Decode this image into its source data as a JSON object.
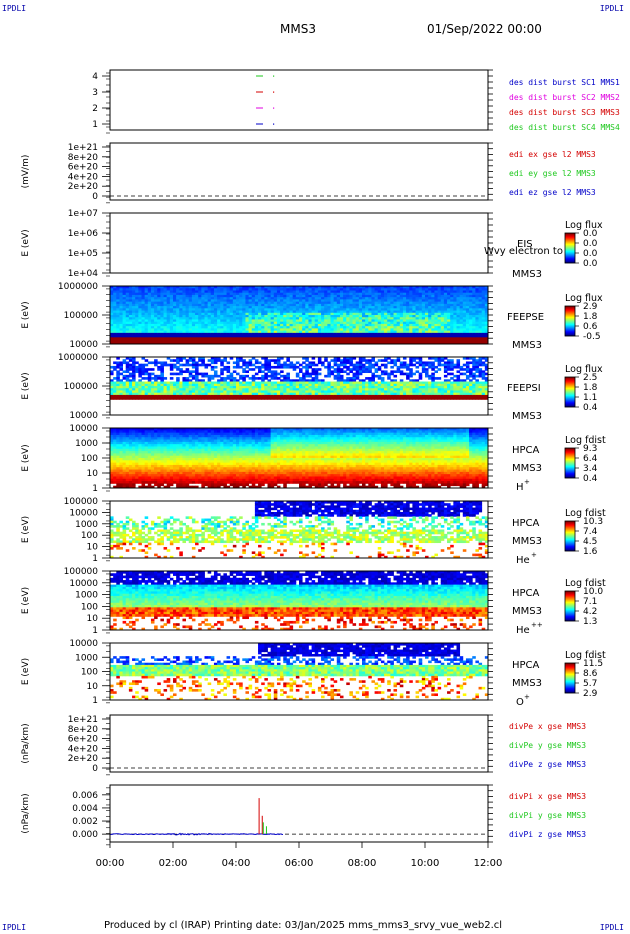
{
  "corners": {
    "tl": "IPDLI",
    "tr": "IPDLI",
    "bl": "IPDLI",
    "br": "IPDLI"
  },
  "header": {
    "spacecraft": "MMS3",
    "date": "01/Sep/2022 00:00"
  },
  "footer": {
    "text": "Produced by cl (IRAP)   Printing date: 03/Jan/2025   mms_mms3_srvy_vue_web2.cl"
  },
  "colors": {
    "red": "#d40000",
    "green": "#1ec81e",
    "magenta": "#e000e0",
    "blue": "#0000c8"
  },
  "chart_data": [
    {
      "id": "burst",
      "type": "scatter",
      "yticks": [
        "1",
        "2",
        "3",
        "4"
      ],
      "legend": [
        {
          "text": "des dist burst SC1 MMS1",
          "color": "#0000c8"
        },
        {
          "text": "des dist burst SC2 MMS2",
          "color": "#e000e0"
        },
        {
          "text": "des dist burst SC3 MMS3",
          "color": "#d40000"
        },
        {
          "text": "des dist burst SC4 MMS4",
          "color": "#1ec81e"
        }
      ]
    },
    {
      "id": "edi",
      "type": "line",
      "ylabel": "(mV/m)",
      "yticks": [
        "0",
        "2e+20",
        "4e+20",
        "6e+20",
        "8e+20",
        "1e+21"
      ],
      "legend": [
        {
          "text": "edi ex gse l2 MMS3",
          "color": "#d40000"
        },
        {
          "text": "edi ey gse l2 MMS3",
          "color": "#1ec81e"
        },
        {
          "text": "edi ez gse l2 MMS3",
          "color": "#0000c8"
        }
      ]
    },
    {
      "id": "eis",
      "type": "heatmap",
      "ylabel": "E (eV)",
      "yticks": [
        "1e+04",
        "1e+05",
        "1e+06",
        "1e+07"
      ],
      "labels": [
        "EIS",
        "MMS3"
      ],
      "overlay": "Wvy electron to",
      "colorbar": {
        "title": "Log flux",
        "ticks": [
          "0.0",
          "0.0",
          "0.0",
          "0.0"
        ]
      }
    },
    {
      "id": "feepse",
      "type": "heatmap",
      "ylabel": "E (eV)",
      "yticks": [
        "10000",
        "100000",
        "1000000"
      ],
      "labels": [
        "FEEPSE",
        "MMS3"
      ],
      "colorbar": {
        "title": "Log flux",
        "ticks": [
          "2.9",
          "1.8",
          "0.6",
          "-0.5"
        ]
      }
    },
    {
      "id": "feepsi",
      "type": "heatmap",
      "ylabel": "E (eV)",
      "yticks": [
        "10000",
        "100000",
        "1000000"
      ],
      "labels": [
        "FEEPSI",
        "MMS3"
      ],
      "colorbar": {
        "title": "Log flux",
        "ticks": [
          "2.5",
          "1.8",
          "1.1",
          "0.4"
        ]
      }
    },
    {
      "id": "hpca_h",
      "type": "heatmap",
      "ylabel": "E (eV)",
      "yticks": [
        "1",
        "10",
        "100",
        "1000",
        "10000"
      ],
      "labels": [
        "HPCA",
        "MMS3"
      ],
      "species": "H",
      "charge": "+",
      "colorbar": {
        "title": "Log fdist",
        "ticks": [
          "9.3",
          "6.4",
          "3.4",
          "0.4"
        ]
      }
    },
    {
      "id": "hpca_he1",
      "type": "heatmap",
      "ylabel": "E (eV)",
      "yticks": [
        "1",
        "10",
        "100",
        "1000",
        "10000",
        "100000"
      ],
      "labels": [
        "HPCA",
        "MMS3"
      ],
      "species": "He",
      "charge": "+",
      "colorbar": {
        "title": "Log fdist",
        "ticks": [
          "10.3",
          "7.4",
          "4.5",
          "1.6"
        ]
      }
    },
    {
      "id": "hpca_he2",
      "type": "heatmap",
      "ylabel": "E (eV)",
      "yticks": [
        "1",
        "10",
        "100",
        "1000",
        "10000",
        "100000"
      ],
      "labels": [
        "HPCA",
        "MMS3"
      ],
      "species": "He",
      "charge": "++",
      "colorbar": {
        "title": "Log fdist",
        "ticks": [
          "10.0",
          "7.1",
          "4.2",
          "1.3"
        ]
      }
    },
    {
      "id": "hpca_o",
      "type": "heatmap",
      "ylabel": "E (eV)",
      "yticks": [
        "1",
        "10",
        "100",
        "1000",
        "10000"
      ],
      "labels": [
        "HPCA",
        "MMS3"
      ],
      "species": "O",
      "charge": "+",
      "colorbar": {
        "title": "Log fdist",
        "ticks": [
          "11.5",
          "8.6",
          "5.7",
          "2.9"
        ]
      }
    },
    {
      "id": "divpe",
      "type": "line",
      "ylabel": "(nPa/km)",
      "yticks": [
        "0",
        "2e+20",
        "4e+20",
        "6e+20",
        "8e+20",
        "1e+21"
      ],
      "legend": [
        {
          "text": "divPe x gse MMS3",
          "color": "#d40000"
        },
        {
          "text": "divPe y gse MMS3",
          "color": "#1ec81e"
        },
        {
          "text": "divPe z gse MMS3",
          "color": "#0000c8"
        }
      ]
    },
    {
      "id": "divpi",
      "type": "line",
      "ylabel": "(nPa/km)",
      "yticks": [
        "0.000",
        "0.002",
        "0.004",
        "0.006"
      ],
      "ylim": [
        -0.0012,
        0.0075
      ],
      "legend": [
        {
          "text": "divPi x gse MMS3",
          "color": "#d40000"
        },
        {
          "text": "divPi y gse MMS3",
          "color": "#1ec81e"
        },
        {
          "text": "divPi z gse MMS3",
          "color": "#0000c8"
        }
      ],
      "spikes": [
        {
          "t": "04:44",
          "series": "x",
          "value": 0.0055
        },
        {
          "t": "04:50",
          "series": "x",
          "value": 0.0028
        },
        {
          "t": "04:52",
          "series": "y",
          "value": 0.0018
        },
        {
          "t": "04:58",
          "series": "y",
          "value": 0.0012
        }
      ]
    }
  ],
  "xaxis": {
    "ticks": [
      "00:00",
      "02:00",
      "04:00",
      "06:00",
      "08:00",
      "10:00",
      "12:00"
    ]
  }
}
